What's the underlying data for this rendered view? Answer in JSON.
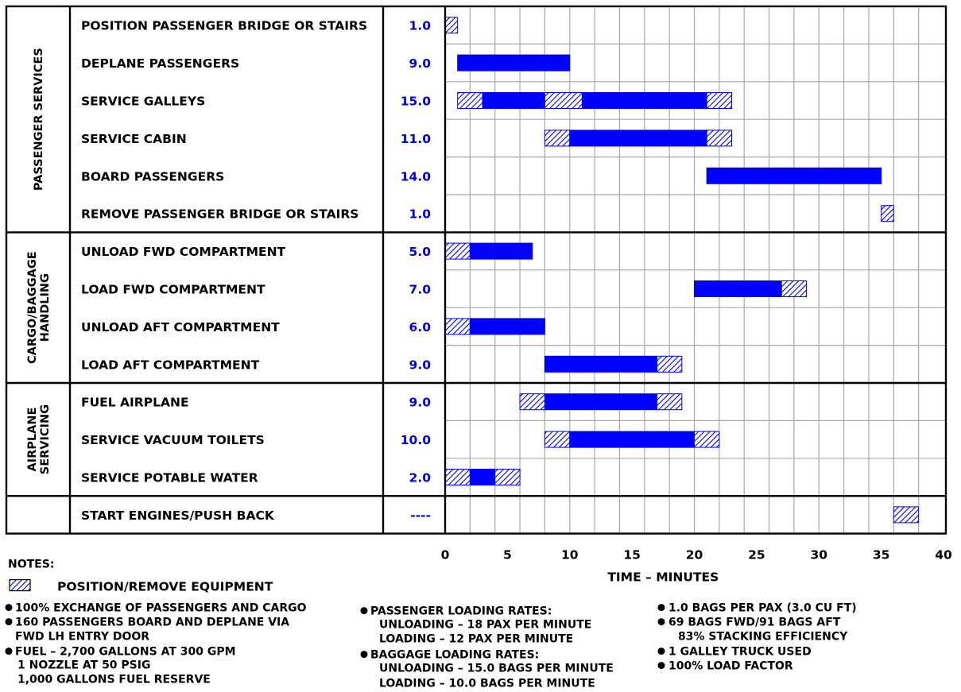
{
  "chart_data": {
    "type": "gantt",
    "xlabel": "TIME – MINUTES",
    "xlim": [
      0,
      40
    ],
    "xticks": [
      "0",
      "5",
      "10",
      "15",
      "20",
      "25",
      "30",
      "35",
      "40"
    ],
    "groups": [
      {
        "name": "PASSENGER SERVICES",
        "lines": [
          "PASSENGER SERVICES"
        ]
      },
      {
        "name": "CARGO/BAGGAGE HANDLING",
        "lines": [
          "CARGO/BAGGAGE",
          "HANDLING"
        ]
      },
      {
        "name": "AIRPLANE SERVICING",
        "lines": [
          "AIRPLANE",
          "SERVICING"
        ]
      }
    ],
    "tasks": [
      {
        "label": "POSITION PASSENGER BRIDGE OR STAIRS",
        "duration": "1.0",
        "group": 0,
        "segments": [
          {
            "start": 0,
            "end": 1,
            "kind": "equipment"
          }
        ]
      },
      {
        "label": "DEPLANE PASSENGERS",
        "duration": "9.0",
        "group": 0,
        "segments": [
          {
            "start": 1,
            "end": 10,
            "kind": "task"
          }
        ]
      },
      {
        "label": "SERVICE GALLEYS",
        "duration": "15.0",
        "group": 0,
        "segments": [
          {
            "start": 1,
            "end": 3,
            "kind": "equipment"
          },
          {
            "start": 3,
            "end": 8,
            "kind": "task"
          },
          {
            "start": 8,
            "end": 11,
            "kind": "equipment"
          },
          {
            "start": 11,
            "end": 21,
            "kind": "task"
          },
          {
            "start": 21,
            "end": 23,
            "kind": "equipment"
          }
        ]
      },
      {
        "label": "SERVICE CABIN",
        "duration": "11.0",
        "group": 0,
        "segments": [
          {
            "start": 8,
            "end": 10,
            "kind": "equipment"
          },
          {
            "start": 10,
            "end": 21,
            "kind": "task"
          },
          {
            "start": 21,
            "end": 23,
            "kind": "equipment"
          }
        ]
      },
      {
        "label": "BOARD PASSENGERS",
        "duration": "14.0",
        "group": 0,
        "segments": [
          {
            "start": 21,
            "end": 35,
            "kind": "task"
          }
        ]
      },
      {
        "label": "REMOVE PASSENGER BRIDGE OR STAIRS",
        "duration": "1.0",
        "group": 0,
        "segments": [
          {
            "start": 35,
            "end": 36,
            "kind": "equipment"
          }
        ]
      },
      {
        "label": "UNLOAD FWD COMPARTMENT",
        "duration": "5.0",
        "group": 1,
        "segments": [
          {
            "start": 0,
            "end": 2,
            "kind": "equipment"
          },
          {
            "start": 2,
            "end": 7,
            "kind": "task"
          }
        ]
      },
      {
        "label": "LOAD FWD COMPARTMENT",
        "duration": "7.0",
        "group": 1,
        "segments": [
          {
            "start": 20,
            "end": 27,
            "kind": "task"
          },
          {
            "start": 27,
            "end": 29,
            "kind": "equipment"
          }
        ]
      },
      {
        "label": "UNLOAD AFT COMPARTMENT",
        "duration": "6.0",
        "group": 1,
        "segments": [
          {
            "start": 0,
            "end": 2,
            "kind": "equipment"
          },
          {
            "start": 2,
            "end": 8,
            "kind": "task"
          }
        ]
      },
      {
        "label": "LOAD AFT COMPARTMENT",
        "duration": "9.0",
        "group": 1,
        "segments": [
          {
            "start": 8,
            "end": 17,
            "kind": "task"
          },
          {
            "start": 17,
            "end": 19,
            "kind": "equipment"
          }
        ]
      },
      {
        "label": "FUEL AIRPLANE",
        "duration": "9.0",
        "group": 2,
        "segments": [
          {
            "start": 6,
            "end": 8,
            "kind": "equipment"
          },
          {
            "start": 8,
            "end": 17,
            "kind": "task"
          },
          {
            "start": 17,
            "end": 19,
            "kind": "equipment"
          }
        ]
      },
      {
        "label": "SERVICE VACUUM TOILETS",
        "duration": "10.0",
        "group": 2,
        "segments": [
          {
            "start": 8,
            "end": 10,
            "kind": "equipment"
          },
          {
            "start": 10,
            "end": 20,
            "kind": "task"
          },
          {
            "start": 20,
            "end": 22,
            "kind": "equipment"
          }
        ]
      },
      {
        "label": "SERVICE POTABLE WATER",
        "duration": "2.0",
        "group": 2,
        "segments": [
          {
            "start": 0,
            "end": 2,
            "kind": "equipment"
          },
          {
            "start": 2,
            "end": 4,
            "kind": "task"
          },
          {
            "start": 4,
            "end": 6,
            "kind": "equipment"
          }
        ]
      },
      {
        "label": "START ENGINES/PUSH BACK",
        "duration": "----",
        "group": null,
        "segments": [
          {
            "start": 36,
            "end": 38,
            "kind": "equipment"
          }
        ]
      }
    ],
    "colors": {
      "task": "#0000ff",
      "equipment_hatch": "#0000ff"
    }
  },
  "notes": {
    "heading": "NOTES:",
    "legend_label": "POSITION/REMOVE EQUIPMENT",
    "col1": [
      {
        "bullet": true,
        "text": "100% EXCHANGE OF PASSENGERS AND CARGO"
      },
      {
        "bullet": true,
        "text": "160 PASSENGERS BOARD AND DEPLANE VIA"
      },
      {
        "bullet": false,
        "text": "FWD LH ENTRY DOOR"
      },
      {
        "bullet": true,
        "text": "FUEL – 2,700 GALLONS AT 300 GPM"
      },
      {
        "bullet": false,
        "text": "1 NOZZLE AT 50 PSIG"
      },
      {
        "bullet": false,
        "text": "1,000 GALLONS FUEL RESERVE"
      }
    ],
    "col2": [
      {
        "bullet": true,
        "text": "PASSENGER LOADING RATES:"
      },
      {
        "bullet": false,
        "text": "UNLOADING – 18 PAX PER MINUTE"
      },
      {
        "bullet": false,
        "text": "LOADING – 12 PAX PER MINUTE"
      },
      {
        "bullet": true,
        "text": "BAGGAGE LOADING RATES:"
      },
      {
        "bullet": false,
        "text": "UNLOADING – 15.0 BAGS PER MINUTE"
      },
      {
        "bullet": false,
        "text": "LOADING – 10.0 BAGS PER MINUTE"
      }
    ],
    "col3": [
      {
        "bullet": true,
        "text": "1.0 BAGS PER PAX (3.0 CU FT)"
      },
      {
        "bullet": true,
        "text": "69 BAGS FWD/91 BAGS AFT"
      },
      {
        "bullet": false,
        "text": "83% STACKING EFFICIENCY"
      },
      {
        "bullet": true,
        "text": "1 GALLEY TRUCK USED"
      },
      {
        "bullet": true,
        "text": "100% LOAD FACTOR"
      }
    ]
  }
}
